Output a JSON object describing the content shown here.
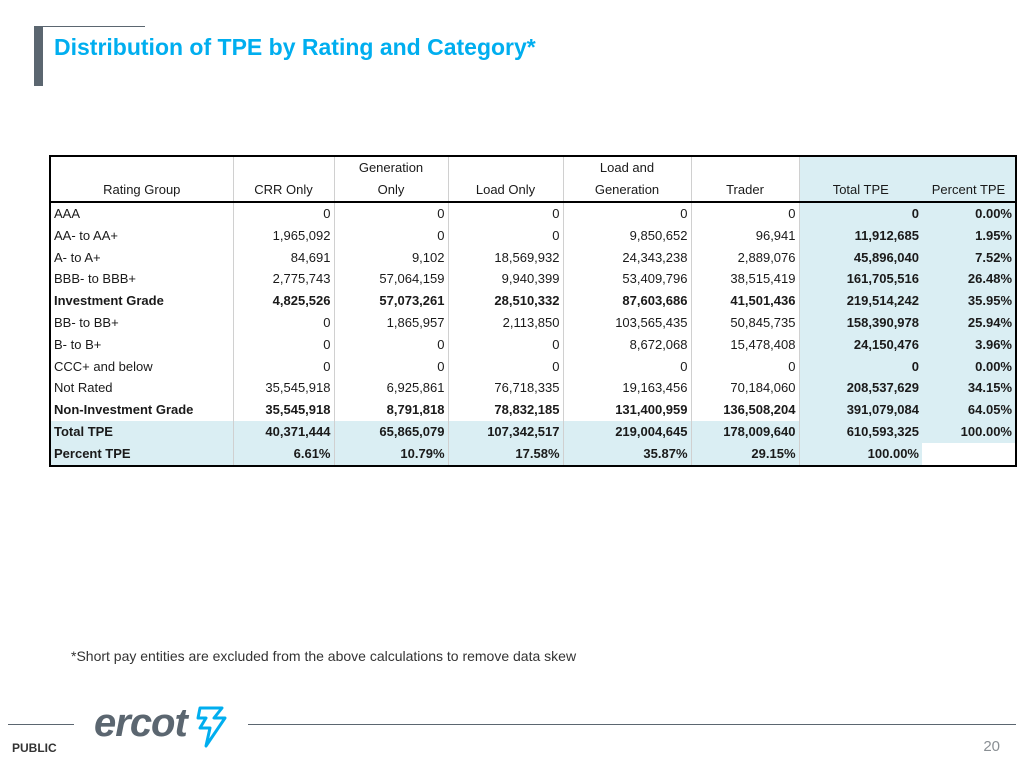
{
  "title": "Distribution of TPE by Rating and Category*",
  "table": {
    "header_row1": [
      "",
      "",
      "Generation",
      "",
      "Load and",
      "",
      "",
      ""
    ],
    "header_row2": [
      "Rating Group",
      "CRR Only",
      "Only",
      "Load Only",
      "Generation",
      "Trader",
      "Total TPE",
      "Percent TPE"
    ],
    "rows": [
      {
        "cells": [
          "AAA",
          "0",
          "0",
          "0",
          "0",
          "0",
          "0",
          "0.00%"
        ],
        "bold": false
      },
      {
        "cells": [
          "AA- to AA+",
          "1,965,092",
          "0",
          "0",
          "9,850,652",
          "96,941",
          "11,912,685",
          "1.95%"
        ],
        "bold": false
      },
      {
        "cells": [
          "A- to A+",
          "84,691",
          "9,102",
          "18,569,932",
          "24,343,238",
          "2,889,076",
          "45,896,040",
          "7.52%"
        ],
        "bold": false
      },
      {
        "cells": [
          "BBB- to BBB+",
          "2,775,743",
          "57,064,159",
          "9,940,399",
          "53,409,796",
          "38,515,419",
          "161,705,516",
          "26.48%"
        ],
        "bold": false
      },
      {
        "cells": [
          "Investment Grade",
          "4,825,526",
          "57,073,261",
          "28,510,332",
          "87,603,686",
          "41,501,436",
          "219,514,242",
          "35.95%"
        ],
        "bold": true
      },
      {
        "cells": [
          "BB- to BB+",
          "0",
          "1,865,957",
          "2,113,850",
          "103,565,435",
          "50,845,735",
          "158,390,978",
          "25.94%"
        ],
        "bold": false
      },
      {
        "cells": [
          "B- to B+",
          "0",
          "0",
          "0",
          "8,672,068",
          "15,478,408",
          "24,150,476",
          "3.96%"
        ],
        "bold": false
      },
      {
        "cells": [
          "CCC+ and below",
          "0",
          "0",
          "0",
          "0",
          "0",
          "0",
          "0.00%"
        ],
        "bold": false
      },
      {
        "cells": [
          "Not Rated",
          "35,545,918",
          "6,925,861",
          "76,718,335",
          "19,163,456",
          "70,184,060",
          "208,537,629",
          "34.15%"
        ],
        "bold": false
      },
      {
        "cells": [
          "Non-Investment Grade",
          "35,545,918",
          "8,791,818",
          "78,832,185",
          "131,400,959",
          "136,508,204",
          "391,079,084",
          "64.05%"
        ],
        "bold": true
      },
      {
        "cells": [
          "Total TPE",
          "40,371,444",
          "65,865,079",
          "107,342,517",
          "219,004,645",
          "178,009,640",
          "610,593,325",
          "100.00%"
        ],
        "bold": true
      },
      {
        "cells": [
          "Percent TPE",
          "6.61%",
          "10.79%",
          "17.58%",
          "35.87%",
          "29.15%",
          "100.00%",
          ""
        ],
        "bold": true
      }
    ]
  },
  "footnote": "*Short pay entities are excluded from the above calculations to remove data skew",
  "logo_text": "ercot",
  "classification": "PUBLIC",
  "page_number": "20",
  "colors": {
    "title": "#00aeef",
    "highlight": "#daeef3",
    "logo": "#5b6670"
  }
}
